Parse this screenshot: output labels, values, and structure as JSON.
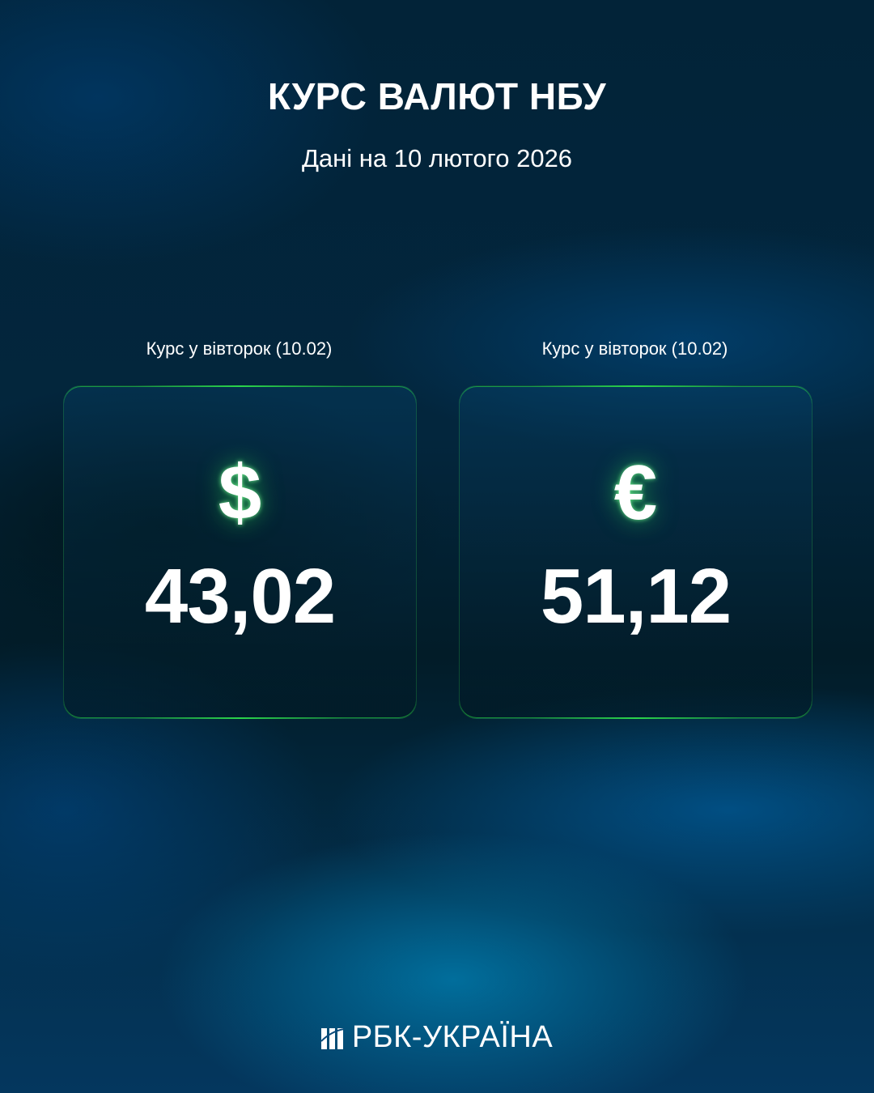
{
  "header": {
    "title": "КУРС ВАЛЮТ НБУ",
    "subtitle": "Дані на 10 лютого 2026"
  },
  "cards": [
    {
      "label": "Курс у вівторок (10.02)",
      "symbol": "$",
      "icon": "dollar-icon",
      "value": "43,02"
    },
    {
      "label": "Курс у вівторок (10.02)",
      "symbol": "€",
      "icon": "euro-icon",
      "value": "51,12"
    }
  ],
  "footer": {
    "logo_text": "РБК-УКРАЇНА"
  },
  "colors": {
    "accent_green": "#2bd44a",
    "background": "#032438"
  }
}
